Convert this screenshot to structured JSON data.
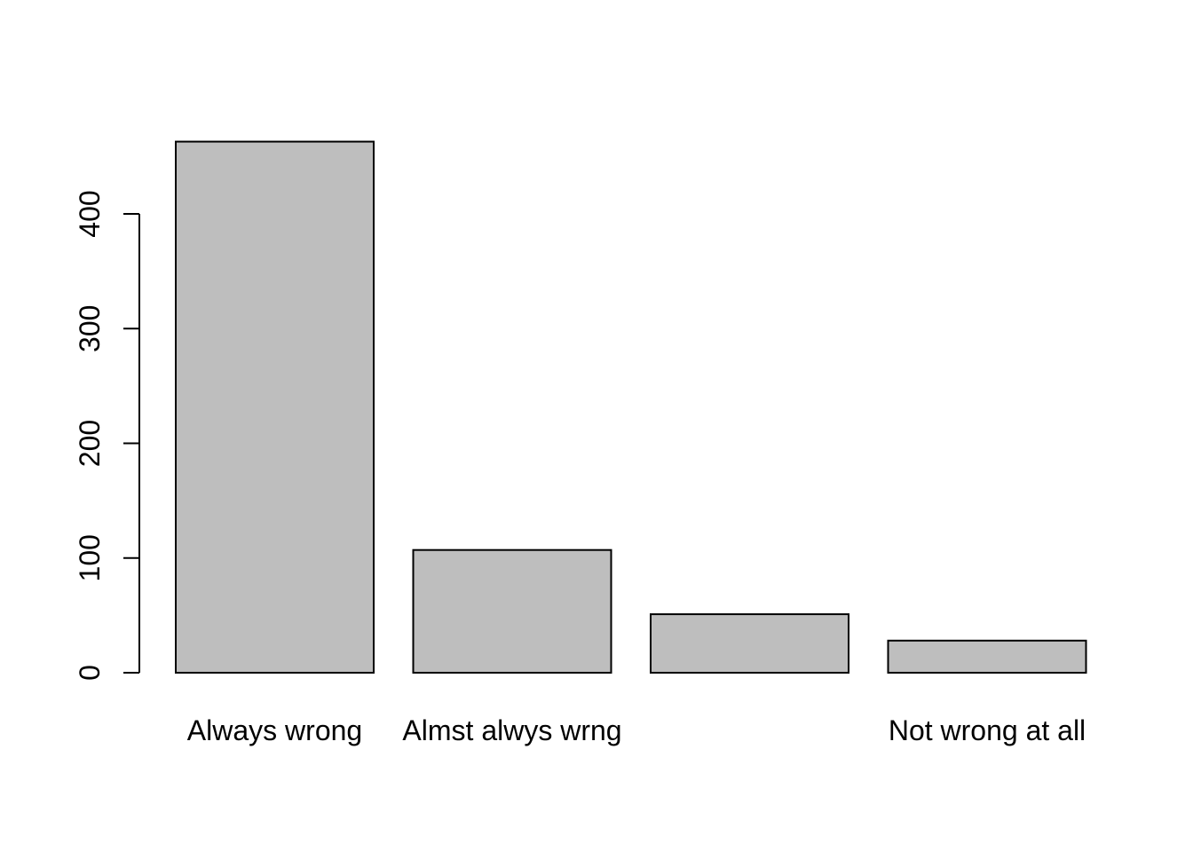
{
  "chart_data": {
    "type": "bar",
    "categories": [
      "Always wrong",
      "Almst alwys wrng",
      "",
      "Not wrong at all"
    ],
    "values": [
      463,
      107,
      51,
      28
    ],
    "yticks": [
      0,
      100,
      200,
      300,
      400
    ],
    "ylim": [
      0,
      463
    ],
    "grid": false,
    "legend": "none",
    "colors": {
      "bar_fill": "#bebebe",
      "bar_stroke": "#000000",
      "background": "#ffffff"
    }
  }
}
